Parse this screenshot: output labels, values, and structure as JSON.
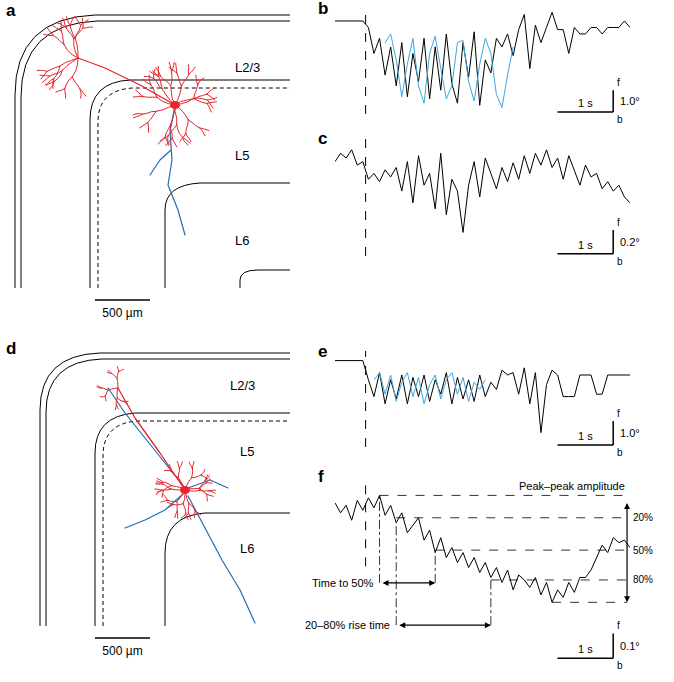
{
  "diagrams": [
    {
      "panel": "a",
      "layer_labels": [
        "L2/3",
        "L5",
        "L6"
      ],
      "scale_bar": {
        "value": 500,
        "label": "500 µm"
      },
      "dendrite_color": "#e3262d",
      "axon_color": "#1f6db5"
    },
    {
      "panel": "d",
      "layer_labels": [
        "L2/3",
        "L5",
        "L6"
      ],
      "scale_bar": {
        "value": 500,
        "label": "500 µm"
      },
      "dendrite_color": "#e3262d",
      "axon_color": "#1f6db5"
    }
  ],
  "chart_data": [
    {
      "panel": "b",
      "type": "line",
      "x": [
        0,
        0.1,
        0.2,
        0.3,
        0.4,
        0.5,
        0.6,
        0.7,
        0.8,
        0.9,
        1.0,
        1.1,
        1.2,
        1.3,
        1.4,
        1.5,
        1.6,
        1.7,
        1.8,
        1.9,
        2.0,
        2.1,
        2.2,
        2.3,
        2.4,
        2.5,
        2.6,
        2.7,
        2.8,
        2.9,
        3.0,
        3.1,
        3.2,
        3.3,
        3.4,
        3.5,
        3.6,
        3.7,
        3.8,
        3.9,
        4.0,
        4.1,
        4.2,
        4.3,
        4.4,
        4.5,
        4.6,
        4.7,
        4.8,
        4.9,
        5.0,
        5.1,
        5.2,
        5.3
      ],
      "series": [
        {
          "color": "#000000",
          "values": [
            0,
            0,
            0,
            0,
            0,
            0,
            -0.3,
            -1.5,
            -0.8,
            -2.5,
            -1.2,
            -3.0,
            -1.0,
            -3.5,
            -1.5,
            -2.8,
            -0.8,
            -3.6,
            -1.2,
            -3.2,
            -0.6,
            -2.9,
            -3.8,
            -1.0,
            -2.6,
            -0.5,
            -3.9,
            -1.8,
            -2.4,
            -0.8,
            -1.2,
            -0.6,
            -1.6,
            -0.4,
            0.3,
            -2.2,
            -0.2,
            -1.0,
            -0.3,
            0.4,
            -0.4,
            -0.4,
            -1.5,
            -0.3,
            -0.6,
            -0.6,
            -0.3,
            -0.3,
            -0.6,
            -0.3,
            -0.3,
            -0.3,
            0.0,
            -0.3
          ]
        },
        {
          "color": "#3ca8df",
          "x": [
            0.9,
            1.0,
            1.1,
            1.2,
            1.3,
            1.4,
            1.5,
            1.6,
            1.7,
            1.8,
            1.9,
            2.0,
            2.1,
            2.2,
            2.3,
            2.4,
            2.5,
            2.6,
            2.7,
            2.8,
            2.9,
            3.0,
            3.1,
            3.2
          ],
          "values": [
            -1.0,
            -0.6,
            -1.8,
            -3.5,
            -2.0,
            -0.8,
            -3.0,
            -3.8,
            -1.5,
            -0.7,
            -2.2,
            -3.6,
            -3.0,
            -1.0,
            -0.9,
            -2.8,
            -3.7,
            -2.0,
            -0.8,
            -1.5,
            -3.4,
            -4.0,
            -2.5,
            -1.2
          ]
        }
      ],
      "xlim": [
        0,
        5.3
      ],
      "ylim": [
        -4.3,
        0.6
      ],
      "tick_labels": false,
      "onset": 0.55,
      "scale_bar": {
        "x_value": 1,
        "x_label": "1 s",
        "y_value": 1.0,
        "y_label": "1.0°",
        "up_label": "f",
        "down_label": "b"
      }
    },
    {
      "panel": "c",
      "type": "line",
      "x": [
        0,
        0.1,
        0.2,
        0.3,
        0.4,
        0.5,
        0.6,
        0.7,
        0.8,
        0.9,
        1.0,
        1.1,
        1.2,
        1.3,
        1.4,
        1.5,
        1.6,
        1.7,
        1.8,
        1.9,
        2.0,
        2.1,
        2.2,
        2.3,
        2.4,
        2.5,
        2.6,
        2.7,
        2.8,
        2.9,
        3.0,
        3.1,
        3.2,
        3.3,
        3.4,
        3.5,
        3.6,
        3.7,
        3.8,
        3.9,
        4.0,
        4.1,
        4.2,
        4.3,
        4.4,
        4.5,
        4.6,
        4.7,
        4.8,
        4.9,
        5.0,
        5.1,
        5.2,
        5.3
      ],
      "series": [
        {
          "color": "#000000",
          "values": [
            0.05,
            0.12,
            0.08,
            0.15,
            0.02,
            0.05,
            -0.1,
            -0.05,
            -0.12,
            -0.02,
            -0.08,
            0.0,
            -0.2,
            0.05,
            -0.3,
            0.1,
            -0.15,
            -0.05,
            -0.35,
            0.12,
            -0.4,
            -0.1,
            -0.2,
            -0.55,
            -0.15,
            0.05,
            -0.25,
            0.08,
            -0.05,
            -0.18,
            0.0,
            -0.12,
            0.04,
            -0.1,
            0.1,
            -0.05,
            0.12,
            0.02,
            0.15,
            0.0,
            0.08,
            -0.1,
            0.1,
            -0.02,
            -0.15,
            0.02,
            -0.08,
            -0.05,
            -0.18,
            -0.12,
            -0.2,
            -0.15,
            -0.25,
            -0.3
          ]
        }
      ],
      "xlim": [
        0,
        5.3
      ],
      "ylim": [
        -0.75,
        0.25
      ],
      "tick_labels": false,
      "onset": 0.55,
      "scale_bar": {
        "x_value": 1,
        "x_label": "1 s",
        "y_value": 0.2,
        "y_label": "0.2°",
        "up_label": "f",
        "down_label": "b"
      }
    },
    {
      "panel": "e",
      "type": "line",
      "x": [
        0,
        0.1,
        0.2,
        0.3,
        0.4,
        0.5,
        0.6,
        0.7,
        0.8,
        0.9,
        1.0,
        1.1,
        1.2,
        1.3,
        1.4,
        1.5,
        1.6,
        1.7,
        1.8,
        1.9,
        2.0,
        2.1,
        2.2,
        2.3,
        2.4,
        2.5,
        2.6,
        2.7,
        2.8,
        2.9,
        3.0,
        3.1,
        3.2,
        3.3,
        3.4,
        3.5,
        3.6,
        3.7,
        3.8,
        3.9,
        4.0,
        4.1,
        4.2,
        4.3,
        4.4,
        4.5,
        4.6,
        4.7,
        4.8,
        4.9,
        5.0,
        5.1,
        5.2,
        5.3
      ],
      "series": [
        {
          "color": "#000000",
          "values": [
            0,
            0,
            0,
            0,
            0,
            0,
            -0.8,
            -1.5,
            -0.5,
            -1.8,
            -0.8,
            -1.6,
            -0.6,
            -1.8,
            -0.7,
            -1.5,
            -0.6,
            -1.7,
            -0.8,
            -1.4,
            -0.5,
            -1.8,
            -0.7,
            -1.6,
            -0.8,
            -1.7,
            -0.6,
            -1.5,
            -0.9,
            -1.2,
            -0.4,
            -0.6,
            -0.5,
            -1.4,
            -0.3,
            -1.8,
            -0.5,
            -3.0,
            -1.0,
            -0.4,
            -0.6,
            -1.5,
            -1.5,
            -1.5,
            -0.6,
            -0.6,
            -0.6,
            -1.4,
            -1.4,
            -0.6,
            -0.6,
            -0.6,
            -0.6,
            -0.6
          ]
        },
        {
          "color": "#3ca8df",
          "x": [
            0.7,
            0.8,
            0.9,
            1.0,
            1.1,
            1.2,
            1.3,
            1.4,
            1.5,
            1.6,
            1.7,
            1.8,
            1.9,
            2.0,
            2.1,
            2.2,
            2.3,
            2.4,
            2.5,
            2.6,
            2.7
          ],
          "values": [
            -0.8,
            -0.5,
            -1.4,
            -0.6,
            -1.7,
            -0.9,
            -0.5,
            -1.5,
            -0.7,
            -1.8,
            -1.0,
            -0.6,
            -1.6,
            -0.8,
            -0.5,
            -1.4,
            -0.7,
            -1.7,
            -0.9,
            -1.2,
            -0.8
          ]
        }
      ],
      "xlim": [
        0,
        5.3
      ],
      "ylim": [
        -3.6,
        0.4
      ],
      "tick_labels": false,
      "onset": 0.55,
      "scale_bar": {
        "x_value": 1,
        "x_label": "1 s",
        "y_value": 1.0,
        "y_label": "1.0°",
        "up_label": "f",
        "down_label": "b"
      }
    },
    {
      "panel": "f",
      "type": "line",
      "x": [
        0,
        0.1,
        0.2,
        0.3,
        0.4,
        0.5,
        0.6,
        0.7,
        0.8,
        0.9,
        1.0,
        1.1,
        1.2,
        1.3,
        1.4,
        1.5,
        1.6,
        1.7,
        1.8,
        1.9,
        2.0,
        2.1,
        2.2,
        2.3,
        2.4,
        2.5,
        2.6,
        2.7,
        2.8,
        2.9,
        3.0,
        3.1,
        3.2,
        3.3,
        3.4,
        3.5,
        3.6,
        3.7,
        3.8,
        3.9,
        4.0,
        4.1,
        4.2,
        4.3,
        4.4,
        4.5,
        4.6,
        4.7,
        4.8,
        4.9,
        5.0,
        5.1,
        5.2,
        5.3
      ],
      "series": [
        {
          "color": "#000000",
          "values": [
            0.02,
            -0.02,
            0.01,
            -0.05,
            0.03,
            -0.01,
            0.04,
            0.0,
            0.05,
            -0.03,
            0.01,
            -0.06,
            -0.02,
            -0.1,
            -0.07,
            -0.04,
            -0.13,
            -0.09,
            -0.18,
            -0.12,
            -0.2,
            -0.16,
            -0.22,
            -0.18,
            -0.24,
            -0.2,
            -0.26,
            -0.22,
            -0.28,
            -0.24,
            -0.3,
            -0.25,
            -0.33,
            -0.27,
            -0.29,
            -0.32,
            -0.28,
            -0.35,
            -0.3,
            -0.38,
            -0.33,
            -0.36,
            -0.3,
            -0.34,
            -0.28,
            -0.28,
            -0.25,
            -0.2,
            -0.15,
            -0.18,
            -0.12,
            -0.14,
            -0.13,
            -0.16
          ]
        }
      ],
      "xlim": [
        0,
        5.3
      ],
      "ylim": [
        -0.62,
        0.12
      ],
      "tick_labels": false,
      "onset": 0.55,
      "scale_bar": {
        "x_value": 1,
        "x_label": "1 s",
        "y_value": 0.1,
        "y_label": "0.1°",
        "up_label": "f",
        "down_label": "b"
      },
      "annotations": {
        "amplitude": {
          "label": "Peak–peak amplitude",
          "peak": {
            "x": 0.8,
            "y": 0.05
          },
          "trough": {
            "x": 3.9,
            "y": -0.38
          }
        },
        "levels": [
          {
            "label": "20%",
            "x": 1.1,
            "y": -0.04
          },
          {
            "label": "50%",
            "x": 1.8,
            "y": -0.17
          },
          {
            "label": "80%",
            "x": 2.8,
            "y": -0.29
          }
        ],
        "spans": [
          {
            "label": "Time to 50%",
            "from": 0.8,
            "to": 1.8
          },
          {
            "label": "20–80% rise time",
            "from": 1.1,
            "to": 2.8
          }
        ]
      }
    }
  ]
}
